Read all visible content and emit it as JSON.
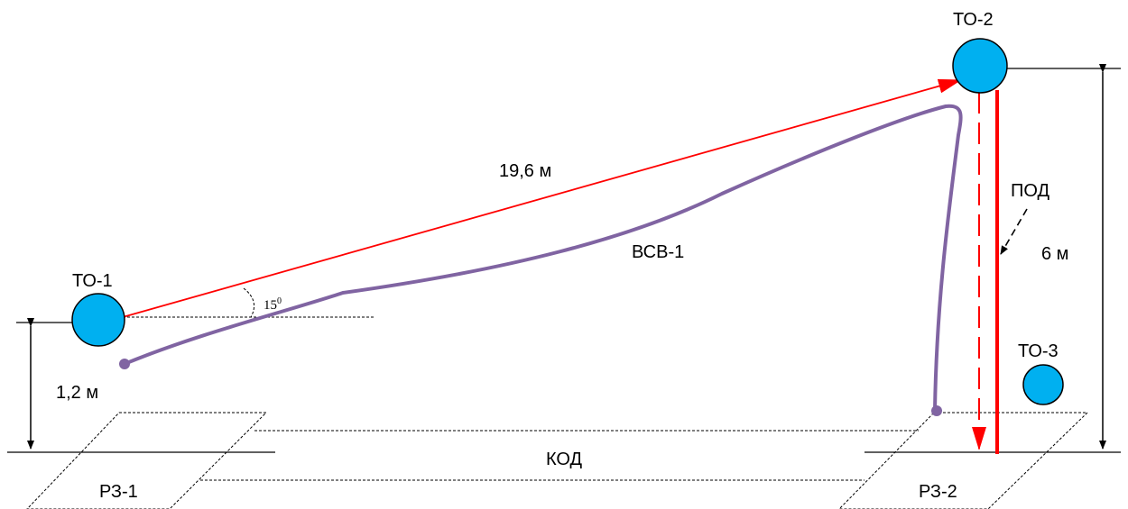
{
  "labels": {
    "to1": "ТО-1",
    "to2": "ТО-2",
    "to3": "ТО-3",
    "distance": "19,6 м",
    "vsv": "ВСВ-1",
    "pod": "ПОД",
    "height_to2": "6 м",
    "height_to1": "1,2 м",
    "kod": "КОД",
    "rz1": "РЗ-1",
    "rz2": "РЗ-2",
    "angle_value": "15",
    "angle_sup": "0"
  },
  "colors": {
    "node_fill": "#00b0f0",
    "red": "#ff0000",
    "cable": "#8064a2",
    "line": "#000000"
  }
}
